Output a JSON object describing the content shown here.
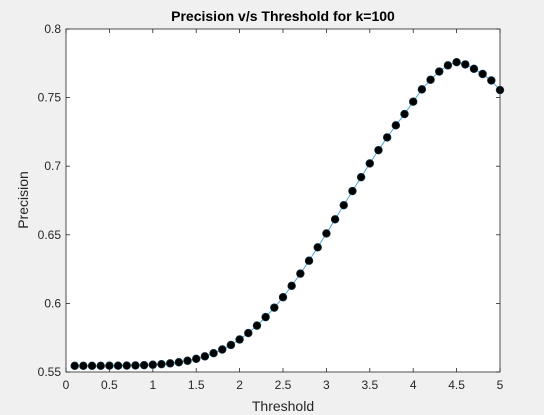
{
  "chart_data": {
    "type": "line",
    "title": "Precision v/s Threshold for k=100",
    "xlabel": "Threshold",
    "ylabel": "Precision",
    "xlim": [
      0,
      5
    ],
    "ylim": [
      0.55,
      0.8
    ],
    "xticks": [
      0,
      0.5,
      1,
      1.5,
      2,
      2.5,
      3,
      3.5,
      4,
      4.5,
      5
    ],
    "yticks": [
      0.55,
      0.6,
      0.65,
      0.7,
      0.75,
      0.8
    ],
    "xtick_labels": [
      "0",
      "0.5",
      "1",
      "1.5",
      "2",
      "2.5",
      "3",
      "3.5",
      "4",
      "4.5",
      "5"
    ],
    "ytick_labels": [
      "0.55",
      "0.6",
      "0.65",
      "0.7",
      "0.75",
      "0.8"
    ],
    "grid": false,
    "colors": {
      "line": "#4fa8d8",
      "marker": "#000000",
      "axis": "#262626",
      "plot_bg": "#ffffff",
      "figure_bg": "#f0f0f0"
    },
    "series": [
      {
        "x": [
          0.1,
          0.2,
          0.3,
          0.4,
          0.5,
          0.6,
          0.7,
          0.8,
          0.9,
          1.0,
          1.1,
          1.2,
          1.3,
          1.4,
          1.5,
          1.6,
          1.7,
          1.8,
          1.9,
          2.0,
          2.1,
          2.2,
          2.3,
          2.4,
          2.5,
          2.6,
          2.7,
          2.8,
          2.9,
          3.0,
          3.1,
          3.2,
          3.3,
          3.4,
          3.5,
          3.6,
          3.7,
          3.8,
          3.9,
          4.0,
          4.1,
          4.2,
          4.3,
          4.4,
          4.5,
          4.6,
          4.7,
          4.8,
          4.9,
          5.0
        ],
        "y": [
          0.5545,
          0.5545,
          0.5545,
          0.5545,
          0.5546,
          0.5546,
          0.5547,
          0.5548,
          0.555,
          0.5553,
          0.5557,
          0.5563,
          0.5571,
          0.5582,
          0.5596,
          0.5614,
          0.5637,
          0.5664,
          0.5697,
          0.5737,
          0.5784,
          0.5838,
          0.59,
          0.5969,
          0.6045,
          0.6128,
          0.6217,
          0.6311,
          0.6409,
          0.651,
          0.6613,
          0.6716,
          0.6819,
          0.692,
          0.702,
          0.7117,
          0.721,
          0.7298,
          0.738,
          0.747,
          0.756,
          0.763,
          0.769,
          0.7735,
          0.7758,
          0.7742,
          0.771,
          0.7672,
          0.7625,
          0.7555
        ]
      }
    ]
  }
}
